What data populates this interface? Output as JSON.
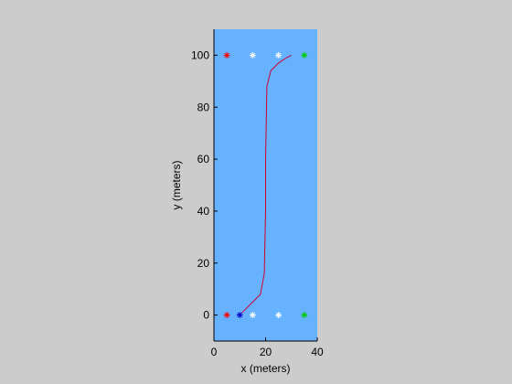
{
  "chart_data": {
    "type": "line",
    "title": "",
    "xlabel": "x (meters)",
    "ylabel": "y (meters)",
    "xlim": [
      0,
      40
    ],
    "ylim": [
      -10,
      110
    ],
    "xticks": [
      0,
      20,
      40
    ],
    "yticks": [
      0,
      20,
      40,
      60,
      80,
      100
    ],
    "grid": false,
    "legend": "none",
    "colors": {
      "figure_background": "#cccccc",
      "axes_background": "#66b2ff",
      "path": "#cc0033"
    },
    "series": [
      {
        "marker_style": "line",
        "color": "#cc0033",
        "x": [
          10,
          18,
          19.5,
          20,
          20,
          20.5,
          22,
          25,
          28,
          30
        ],
        "y": [
          0,
          8,
          16,
          40,
          60,
          88,
          94,
          97,
          99,
          100
        ]
      },
      {
        "marker_style": "star",
        "color": "#ff0000",
        "x": [
          5,
          5
        ],
        "y": [
          0,
          100
        ]
      },
      {
        "marker_style": "star",
        "color": "#0000cc",
        "x": [
          10
        ],
        "y": [
          0
        ]
      },
      {
        "marker_style": "star",
        "color": "#ffffff",
        "x": [
          15,
          25,
          15,
          25
        ],
        "y": [
          0,
          0,
          100,
          100
        ]
      },
      {
        "marker_style": "star",
        "color": "#00cc00",
        "x": [
          35,
          35
        ],
        "y": [
          0,
          100
        ]
      }
    ]
  }
}
